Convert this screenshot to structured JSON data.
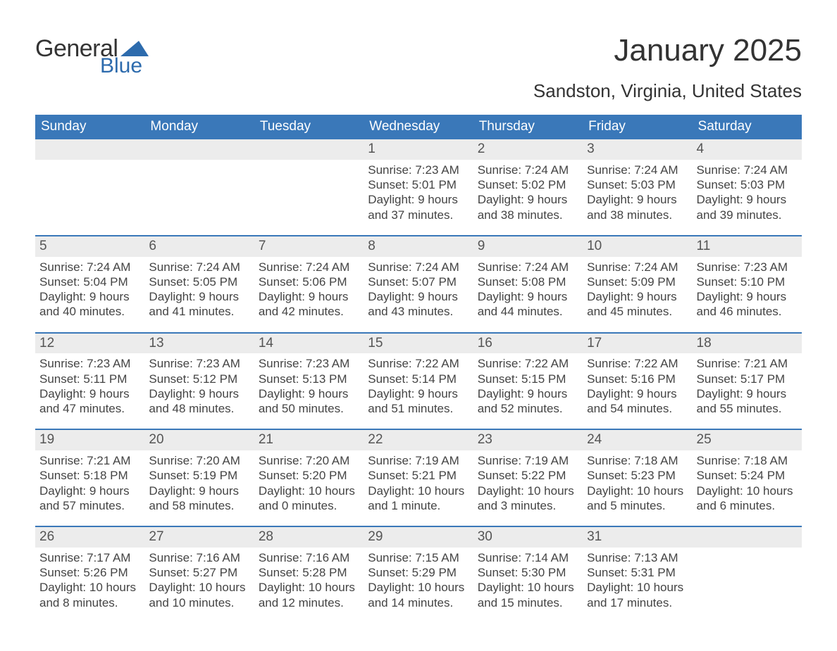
{
  "brand": {
    "word1": "General",
    "word2": "Blue",
    "flag_color": "#2d6bad"
  },
  "title": "January 2025",
  "location": "Sandston, Virginia, United States",
  "colors": {
    "header_bg": "#3a78b9",
    "header_text": "#ffffff",
    "daynum_bg": "#ececec",
    "week_border": "#3a78b9",
    "body_text": "#444444",
    "title_text": "#333333"
  },
  "weekdays": [
    "Sunday",
    "Monday",
    "Tuesday",
    "Wednesday",
    "Thursday",
    "Friday",
    "Saturday"
  ],
  "weeks": [
    [
      {
        "n": "",
        "sunrise": "",
        "sunset": "",
        "daylight": ""
      },
      {
        "n": "",
        "sunrise": "",
        "sunset": "",
        "daylight": ""
      },
      {
        "n": "",
        "sunrise": "",
        "sunset": "",
        "daylight": ""
      },
      {
        "n": "1",
        "sunrise": "Sunrise: 7:23 AM",
        "sunset": "Sunset: 5:01 PM",
        "daylight": "Daylight: 9 hours and 37 minutes."
      },
      {
        "n": "2",
        "sunrise": "Sunrise: 7:24 AM",
        "sunset": "Sunset: 5:02 PM",
        "daylight": "Daylight: 9 hours and 38 minutes."
      },
      {
        "n": "3",
        "sunrise": "Sunrise: 7:24 AM",
        "sunset": "Sunset: 5:03 PM",
        "daylight": "Daylight: 9 hours and 38 minutes."
      },
      {
        "n": "4",
        "sunrise": "Sunrise: 7:24 AM",
        "sunset": "Sunset: 5:03 PM",
        "daylight": "Daylight: 9 hours and 39 minutes."
      }
    ],
    [
      {
        "n": "5",
        "sunrise": "Sunrise: 7:24 AM",
        "sunset": "Sunset: 5:04 PM",
        "daylight": "Daylight: 9 hours and 40 minutes."
      },
      {
        "n": "6",
        "sunrise": "Sunrise: 7:24 AM",
        "sunset": "Sunset: 5:05 PM",
        "daylight": "Daylight: 9 hours and 41 minutes."
      },
      {
        "n": "7",
        "sunrise": "Sunrise: 7:24 AM",
        "sunset": "Sunset: 5:06 PM",
        "daylight": "Daylight: 9 hours and 42 minutes."
      },
      {
        "n": "8",
        "sunrise": "Sunrise: 7:24 AM",
        "sunset": "Sunset: 5:07 PM",
        "daylight": "Daylight: 9 hours and 43 minutes."
      },
      {
        "n": "9",
        "sunrise": "Sunrise: 7:24 AM",
        "sunset": "Sunset: 5:08 PM",
        "daylight": "Daylight: 9 hours and 44 minutes."
      },
      {
        "n": "10",
        "sunrise": "Sunrise: 7:24 AM",
        "sunset": "Sunset: 5:09 PM",
        "daylight": "Daylight: 9 hours and 45 minutes."
      },
      {
        "n": "11",
        "sunrise": "Sunrise: 7:23 AM",
        "sunset": "Sunset: 5:10 PM",
        "daylight": "Daylight: 9 hours and 46 minutes."
      }
    ],
    [
      {
        "n": "12",
        "sunrise": "Sunrise: 7:23 AM",
        "sunset": "Sunset: 5:11 PM",
        "daylight": "Daylight: 9 hours and 47 minutes."
      },
      {
        "n": "13",
        "sunrise": "Sunrise: 7:23 AM",
        "sunset": "Sunset: 5:12 PM",
        "daylight": "Daylight: 9 hours and 48 minutes."
      },
      {
        "n": "14",
        "sunrise": "Sunrise: 7:23 AM",
        "sunset": "Sunset: 5:13 PM",
        "daylight": "Daylight: 9 hours and 50 minutes."
      },
      {
        "n": "15",
        "sunrise": "Sunrise: 7:22 AM",
        "sunset": "Sunset: 5:14 PM",
        "daylight": "Daylight: 9 hours and 51 minutes."
      },
      {
        "n": "16",
        "sunrise": "Sunrise: 7:22 AM",
        "sunset": "Sunset: 5:15 PM",
        "daylight": "Daylight: 9 hours and 52 minutes."
      },
      {
        "n": "17",
        "sunrise": "Sunrise: 7:22 AM",
        "sunset": "Sunset: 5:16 PM",
        "daylight": "Daylight: 9 hours and 54 minutes."
      },
      {
        "n": "18",
        "sunrise": "Sunrise: 7:21 AM",
        "sunset": "Sunset: 5:17 PM",
        "daylight": "Daylight: 9 hours and 55 minutes."
      }
    ],
    [
      {
        "n": "19",
        "sunrise": "Sunrise: 7:21 AM",
        "sunset": "Sunset: 5:18 PM",
        "daylight": "Daylight: 9 hours and 57 minutes."
      },
      {
        "n": "20",
        "sunrise": "Sunrise: 7:20 AM",
        "sunset": "Sunset: 5:19 PM",
        "daylight": "Daylight: 9 hours and 58 minutes."
      },
      {
        "n": "21",
        "sunrise": "Sunrise: 7:20 AM",
        "sunset": "Sunset: 5:20 PM",
        "daylight": "Daylight: 10 hours and 0 minutes."
      },
      {
        "n": "22",
        "sunrise": "Sunrise: 7:19 AM",
        "sunset": "Sunset: 5:21 PM",
        "daylight": "Daylight: 10 hours and 1 minute."
      },
      {
        "n": "23",
        "sunrise": "Sunrise: 7:19 AM",
        "sunset": "Sunset: 5:22 PM",
        "daylight": "Daylight: 10 hours and 3 minutes."
      },
      {
        "n": "24",
        "sunrise": "Sunrise: 7:18 AM",
        "sunset": "Sunset: 5:23 PM",
        "daylight": "Daylight: 10 hours and 5 minutes."
      },
      {
        "n": "25",
        "sunrise": "Sunrise: 7:18 AM",
        "sunset": "Sunset: 5:24 PM",
        "daylight": "Daylight: 10 hours and 6 minutes."
      }
    ],
    [
      {
        "n": "26",
        "sunrise": "Sunrise: 7:17 AM",
        "sunset": "Sunset: 5:26 PM",
        "daylight": "Daylight: 10 hours and 8 minutes."
      },
      {
        "n": "27",
        "sunrise": "Sunrise: 7:16 AM",
        "sunset": "Sunset: 5:27 PM",
        "daylight": "Daylight: 10 hours and 10 minutes."
      },
      {
        "n": "28",
        "sunrise": "Sunrise: 7:16 AM",
        "sunset": "Sunset: 5:28 PM",
        "daylight": "Daylight: 10 hours and 12 minutes."
      },
      {
        "n": "29",
        "sunrise": "Sunrise: 7:15 AM",
        "sunset": "Sunset: 5:29 PM",
        "daylight": "Daylight: 10 hours and 14 minutes."
      },
      {
        "n": "30",
        "sunrise": "Sunrise: 7:14 AM",
        "sunset": "Sunset: 5:30 PM",
        "daylight": "Daylight: 10 hours and 15 minutes."
      },
      {
        "n": "31",
        "sunrise": "Sunrise: 7:13 AM",
        "sunset": "Sunset: 5:31 PM",
        "daylight": "Daylight: 10 hours and 17 minutes."
      },
      {
        "n": "",
        "sunrise": "",
        "sunset": "",
        "daylight": ""
      }
    ]
  ]
}
